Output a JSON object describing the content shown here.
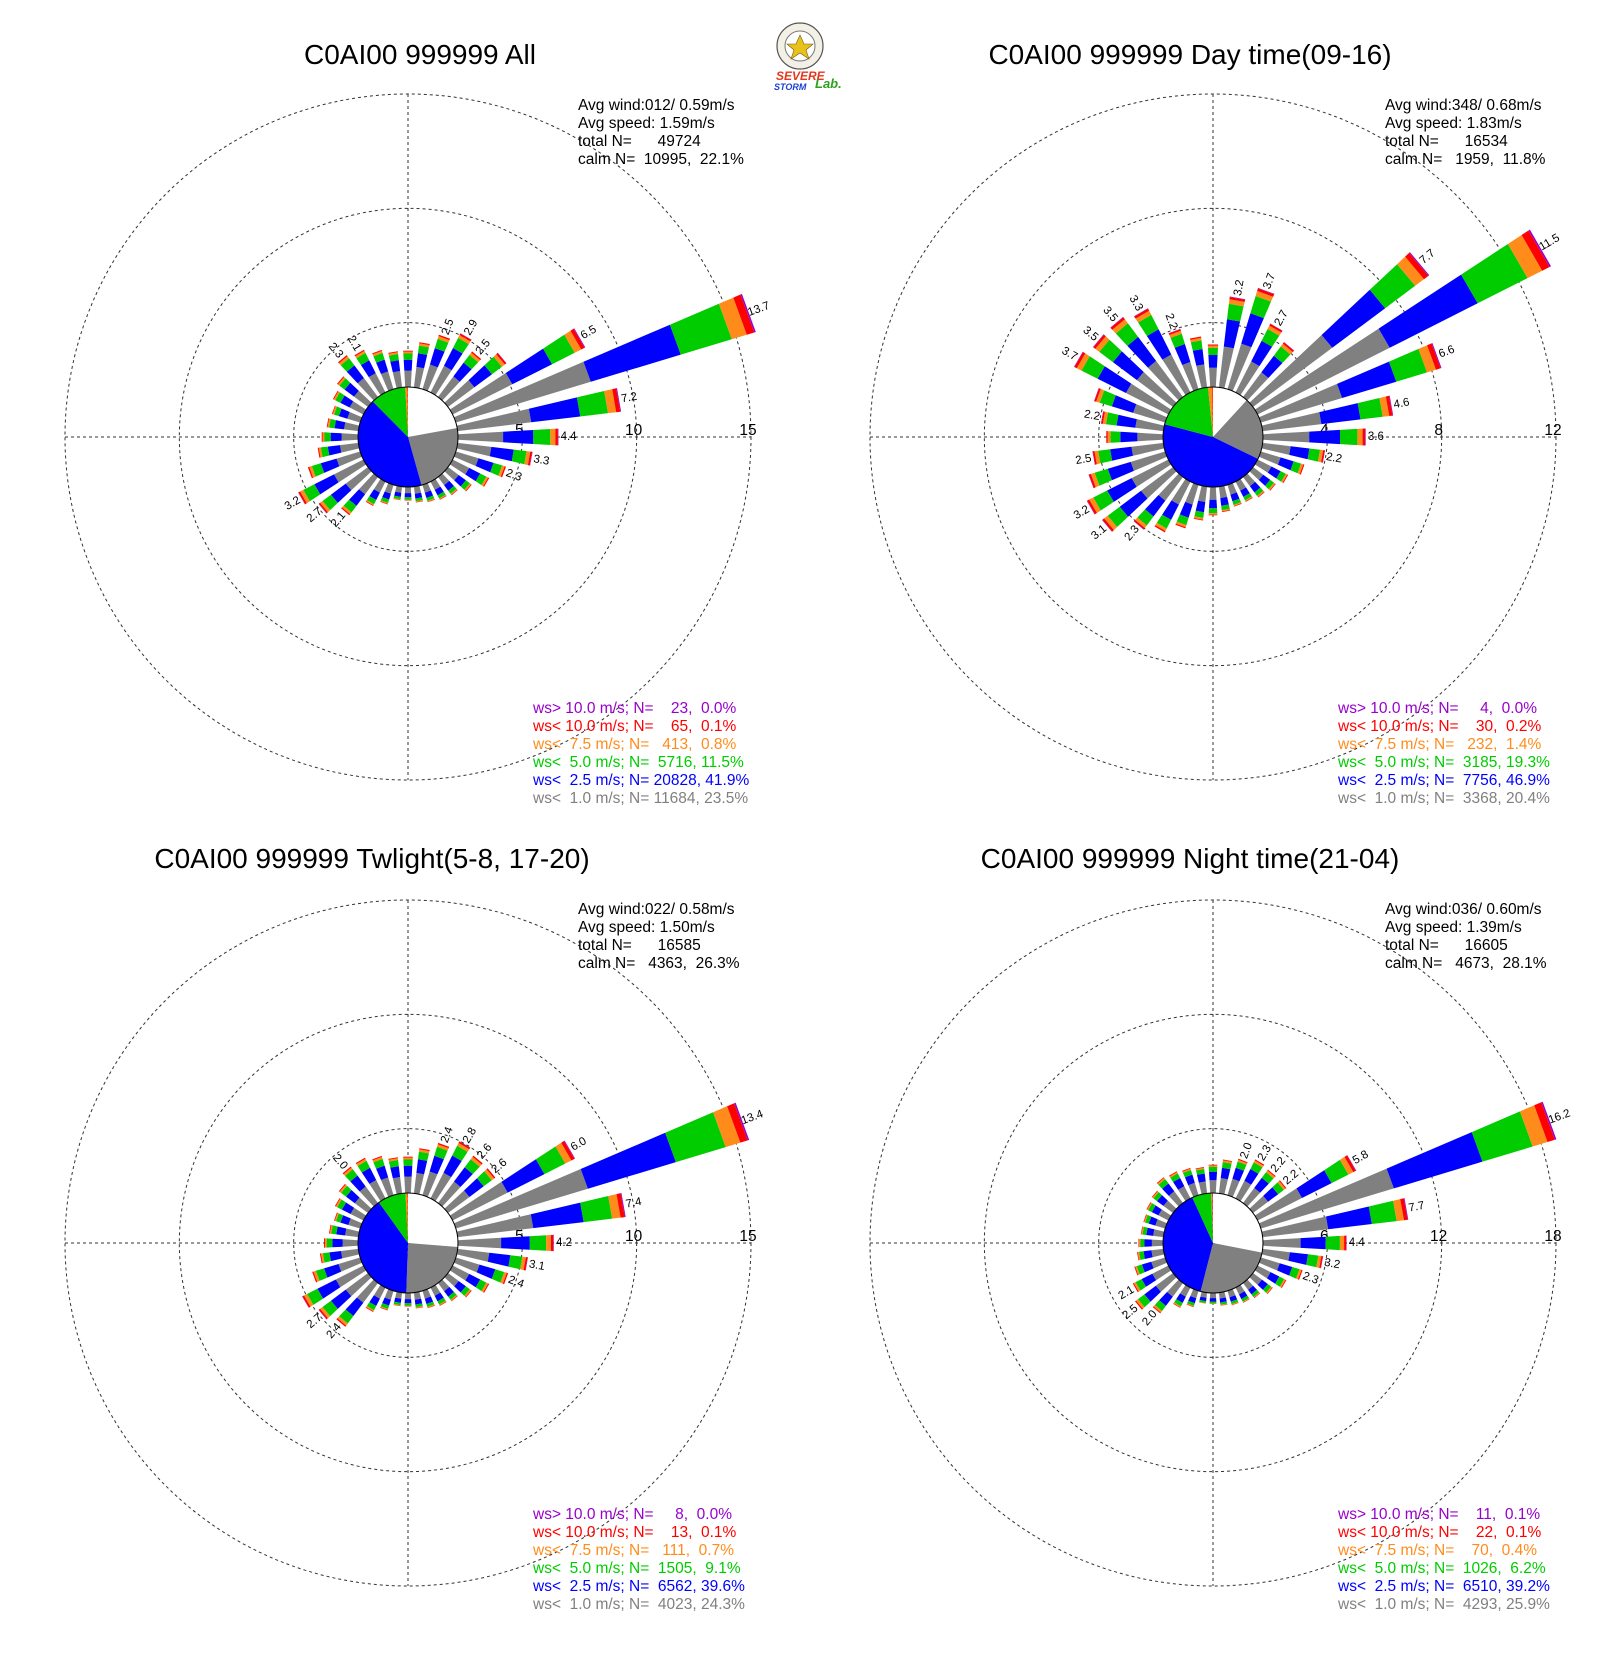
{
  "logo": {
    "word_severe": "SEVERE",
    "word_storm": "STORM",
    "word_lab": "Lab.",
    "color_severe": "#e8361c",
    "color_storm": "#1d3fd6",
    "color_lab": "#2aa21a"
  },
  "colors": {
    "calm": "#ffffff",
    "lt1": "#808080",
    "lt2_5": "#0000ff",
    "lt5": "#00cc00",
    "lt7_5": "#ff8c1a",
    "lt10": "#ff0000",
    "gt10": "#9900cc"
  },
  "chart_data": [
    {
      "type": "wind-rose",
      "title": "C0AI00 999999 All",
      "station": "C0AI00",
      "period": "All",
      "stats": {
        "avg_wind": "Avg wind:012/ 0.59m/s",
        "avg_speed": "Avg speed: 1.59m/s",
        "total": "total N=      49724",
        "calm": "calm N=  10995,  22.1%"
      },
      "rings": [
        5,
        10,
        15
      ],
      "ring_labels": [
        "5",
        "10",
        "15"
      ],
      "center_pie": [
        22.1,
        23.5,
        41.9,
        11.5,
        0.8,
        0.1,
        0.0
      ],
      "directions_deg": [
        0,
        10,
        20,
        30,
        40,
        50,
        60,
        70,
        80,
        90,
        100,
        110,
        120,
        130,
        140,
        150,
        160,
        170,
        180,
        190,
        200,
        210,
        220,
        230,
        240,
        250,
        260,
        270,
        280,
        290,
        300,
        310,
        320,
        330,
        340,
        350
      ],
      "sector_totals": [
        1.6,
        2.0,
        2.5,
        2.9,
        2.5,
        3.2,
        6.5,
        13.7,
        7.2,
        4.4,
        3.3,
        2.3,
        1.8,
        1.3,
        1.0,
        0.9,
        0.8,
        0.7,
        0.6,
        0.6,
        0.9,
        1.2,
        2.1,
        2.7,
        3.2,
        2.4,
        1.8,
        1.6,
        1.4,
        1.3,
        1.5,
        1.7,
        2.3,
        2.1,
        1.8,
        1.6
      ],
      "sector_labels": [
        "",
        "",
        "2.5",
        "2.9",
        "2.5",
        "",
        "6.5",
        "13.7",
        "7.2",
        "4.4",
        "3.3",
        "2.3",
        "",
        "",
        "",
        "",
        "",
        "",
        "",
        "",
        "",
        "",
        "2.1",
        "2.7",
        "3.2",
        "",
        "",
        "",
        "",
        "",
        "",
        "",
        "2.3",
        "2.1",
        "",
        ""
      ],
      "legend": [
        {
          "text": "ws> 10.0 m/s; N=    23,  0.0%",
          "color": "#9900cc"
        },
        {
          "text": "ws< 10.0 m/s; N=    65,  0.1%",
          "color": "#ff0000"
        },
        {
          "text": "ws<  7.5 m/s; N=   413,  0.8%",
          "color": "#ff8c1a"
        },
        {
          "text": "ws<  5.0 m/s; N=  5716, 11.5%",
          "color": "#00cc00"
        },
        {
          "text": "ws<  2.5 m/s; N= 20828, 41.9%",
          "color": "#0000ff"
        },
        {
          "text": "ws<  1.0 m/s; N= 11684, 23.5%",
          "color": "#808080"
        }
      ]
    },
    {
      "type": "wind-rose",
      "title": "C0AI00 999999 Day time(09-16)",
      "station": "C0AI00",
      "period": "Day time(09-16)",
      "stats": {
        "avg_wind": "Avg wind:348/ 0.68m/s",
        "avg_speed": "Avg speed: 1.83m/s",
        "total": "total N=      16534",
        "calm": "calm N=   1959,  11.8%"
      },
      "rings": [
        4,
        8,
        12
      ],
      "ring_labels": [
        "4",
        "8",
        "12"
      ],
      "center_pie": [
        11.8,
        20.4,
        46.9,
        19.3,
        1.4,
        0.2,
        0.0
      ],
      "directions_deg": [
        0,
        10,
        20,
        30,
        40,
        50,
        60,
        70,
        80,
        90,
        100,
        110,
        120,
        130,
        140,
        150,
        160,
        170,
        180,
        190,
        200,
        210,
        220,
        230,
        240,
        250,
        260,
        270,
        280,
        290,
        300,
        310,
        320,
        330,
        340,
        350
      ],
      "sector_totals": [
        1.5,
        3.2,
        3.7,
        2.7,
        2.4,
        7.7,
        11.5,
        6.6,
        4.6,
        3.6,
        2.2,
        1.6,
        1.2,
        1.0,
        0.9,
        0.8,
        0.8,
        0.9,
        1.0,
        1.2,
        1.6,
        2.0,
        2.3,
        3.1,
        3.2,
        2.8,
        2.5,
        2.0,
        2.2,
        2.6,
        3.7,
        3.5,
        3.5,
        3.3,
        2.2,
        1.8
      ],
      "sector_labels": [
        "",
        "3.2",
        "3.7",
        "2.7",
        "",
        "7.7",
        "11.5",
        "6.6",
        "4.6",
        "3.6",
        "2.2",
        "",
        "",
        "",
        "",
        "",
        "",
        "",
        "",
        "",
        "",
        "",
        "2.3",
        "3.1",
        "3.2",
        "",
        "2.5",
        "",
        "2.2",
        "",
        "3.7",
        "3.5",
        "3.5",
        "3.3",
        "2.2",
        ""
      ],
      "legend": [
        {
          "text": "ws> 10.0 m/s; N=     4,  0.0%",
          "color": "#9900cc"
        },
        {
          "text": "ws< 10.0 m/s; N=    30,  0.2%",
          "color": "#ff0000"
        },
        {
          "text": "ws<  7.5 m/s; N=   232,  1.4%",
          "color": "#ff8c1a"
        },
        {
          "text": "ws<  5.0 m/s; N=  3185, 19.3%",
          "color": "#00cc00"
        },
        {
          "text": "ws<  2.5 m/s; N=  7756, 46.9%",
          "color": "#0000ff"
        },
        {
          "text": "ws<  1.0 m/s; N=  3368, 20.4%",
          "color": "#808080"
        }
      ]
    },
    {
      "type": "wind-rose",
      "title": "C0AI00 999999 Twlight(5-8, 17-20)",
      "station": "C0AI00",
      "period": "Twlight(5-8, 17-20)",
      "stats": {
        "avg_wind": "Avg wind:022/ 0.58m/s",
        "avg_speed": "Avg speed: 1.50m/s",
        "total": "total N=      16585",
        "calm": "calm N=   4363,  26.3%"
      },
      "rings": [
        5,
        10,
        15
      ],
      "ring_labels": [
        "5",
        "10",
        "15"
      ],
      "center_pie": [
        26.3,
        24.3,
        39.6,
        9.1,
        0.7,
        0.1,
        0.0
      ],
      "directions_deg": [
        0,
        10,
        20,
        30,
        40,
        50,
        60,
        70,
        80,
        90,
        100,
        110,
        120,
        130,
        140,
        150,
        160,
        170,
        180,
        190,
        200,
        210,
        220,
        230,
        240,
        250,
        260,
        270,
        280,
        290,
        300,
        310,
        320,
        330,
        340,
        350
      ],
      "sector_totals": [
        1.6,
        2.0,
        2.4,
        2.8,
        2.6,
        2.6,
        6.0,
        13.4,
        7.4,
        4.2,
        3.1,
        2.4,
        1.8,
        1.3,
        1.0,
        0.9,
        0.8,
        0.7,
        0.6,
        0.6,
        0.9,
        1.2,
        2.4,
        2.7,
        3.0,
        2.2,
        1.7,
        1.5,
        1.3,
        1.2,
        1.4,
        1.6,
        2.0,
        2.0,
        1.8,
        1.6
      ],
      "sector_labels": [
        "",
        "",
        "2.4",
        "2.8",
        "2.6",
        "2.6",
        "6.0",
        "13.4",
        "7.4",
        "4.2",
        "3.1",
        "2.4",
        "",
        "",
        "",
        "",
        "",
        "",
        "",
        "",
        "",
        "",
        "2.4",
        "2.7",
        "",
        "",
        "",
        "",
        "",
        "",
        "",
        "",
        "2.0",
        "",
        "",
        ""
      ],
      "legend": [
        {
          "text": "ws> 10.0 m/s; N=     8,  0.0%",
          "color": "#9900cc"
        },
        {
          "text": "ws< 10.0 m/s; N=    13,  0.1%",
          "color": "#ff0000"
        },
        {
          "text": "ws<  7.5 m/s; N=   111,  0.7%",
          "color": "#ff8c1a"
        },
        {
          "text": "ws<  5.0 m/s; N=  1505,  9.1%",
          "color": "#00cc00"
        },
        {
          "text": "ws<  2.5 m/s; N=  6562, 39.6%",
          "color": "#0000ff"
        },
        {
          "text": "ws<  1.0 m/s; N=  4023, 24.3%",
          "color": "#808080"
        }
      ]
    },
    {
      "type": "wind-rose",
      "title": "C0AI00 999999 Night time(21-04)",
      "station": "C0AI00",
      "period": "Night time(21-04)",
      "stats": {
        "avg_wind": "Avg wind:036/ 0.60m/s",
        "avg_speed": "Avg speed: 1.39m/s",
        "total": "total N=      16605",
        "calm": "calm N=   4673,  28.1%"
      },
      "rings": [
        6,
        12,
        18
      ],
      "ring_labels": [
        "6",
        "12",
        "18"
      ],
      "center_pie": [
        28.1,
        25.9,
        39.2,
        6.2,
        0.4,
        0.1,
        0.1
      ],
      "directions_deg": [
        0,
        10,
        20,
        30,
        40,
        50,
        60,
        70,
        80,
        90,
        100,
        110,
        120,
        130,
        140,
        150,
        160,
        170,
        180,
        190,
        200,
        210,
        220,
        230,
        240,
        250,
        260,
        270,
        280,
        290,
        300,
        310,
        320,
        330,
        340,
        350
      ],
      "sector_totals": [
        1.5,
        1.8,
        2.0,
        2.3,
        2.2,
        2.2,
        5.8,
        16.2,
        7.7,
        4.4,
        3.2,
        2.3,
        1.7,
        1.3,
        1.0,
        0.9,
        0.8,
        0.7,
        0.6,
        0.6,
        0.9,
        1.2,
        2.0,
        2.5,
        2.1,
        1.7,
        1.4,
        1.3,
        1.2,
        1.2,
        1.3,
        1.4,
        1.7,
        1.6,
        1.5,
        1.4
      ],
      "sector_labels": [
        "",
        "",
        "2.0",
        "2.3",
        "2.2",
        "2.2",
        "5.8",
        "16.2",
        "7.7",
        "4.4",
        "3.2",
        "2.3",
        "",
        "",
        "",
        "",
        "",
        "",
        "",
        "",
        "",
        "",
        "2.0",
        "2.5",
        "2.1",
        "",
        "",
        "",
        "",
        "",
        "",
        "",
        "",
        "",
        "",
        ""
      ],
      "legend": [
        {
          "text": "ws> 10.0 m/s; N=    11,  0.1%",
          "color": "#9900cc"
        },
        {
          "text": "ws< 10.0 m/s; N=    22,  0.1%",
          "color": "#ff0000"
        },
        {
          "text": "ws<  7.5 m/s; N=    70,  0.4%",
          "color": "#ff8c1a"
        },
        {
          "text": "ws<  5.0 m/s; N=  1026,  6.2%",
          "color": "#00cc00"
        },
        {
          "text": "ws<  2.5 m/s; N=  6510, 39.2%",
          "color": "#0000ff"
        },
        {
          "text": "ws<  1.0 m/s; N=  4293, 25.9%",
          "color": "#808080"
        }
      ]
    }
  ]
}
